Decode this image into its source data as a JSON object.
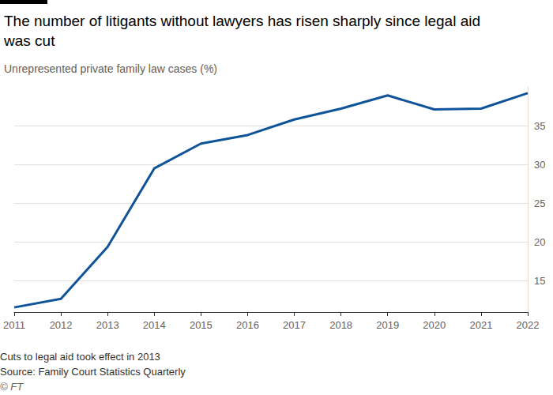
{
  "chart_data": {
    "type": "line",
    "title": "The number of litigants without lawyers has risen sharply since legal aid was cut",
    "subtitle": "Unrepresented private family law cases (%)",
    "annotations": [
      "Cuts to legal aid took effect in 2013",
      "Source: Family Court Statistics Quarterly",
      "© FT"
    ],
    "categories": [
      "2011",
      "2012",
      "2013",
      "2014",
      "2015",
      "2016",
      "2017",
      "2018",
      "2019",
      "2020",
      "2021",
      "2022"
    ],
    "values": [
      11.6,
      12.7,
      19.4,
      29.5,
      32.7,
      33.8,
      35.8,
      37.2,
      38.9,
      37.1,
      37.2,
      39.2
    ],
    "color": "#0f5499",
    "ylim": [
      11,
      40
    ],
    "yticks": [
      15,
      20,
      25,
      30,
      35
    ],
    "grid": true
  }
}
